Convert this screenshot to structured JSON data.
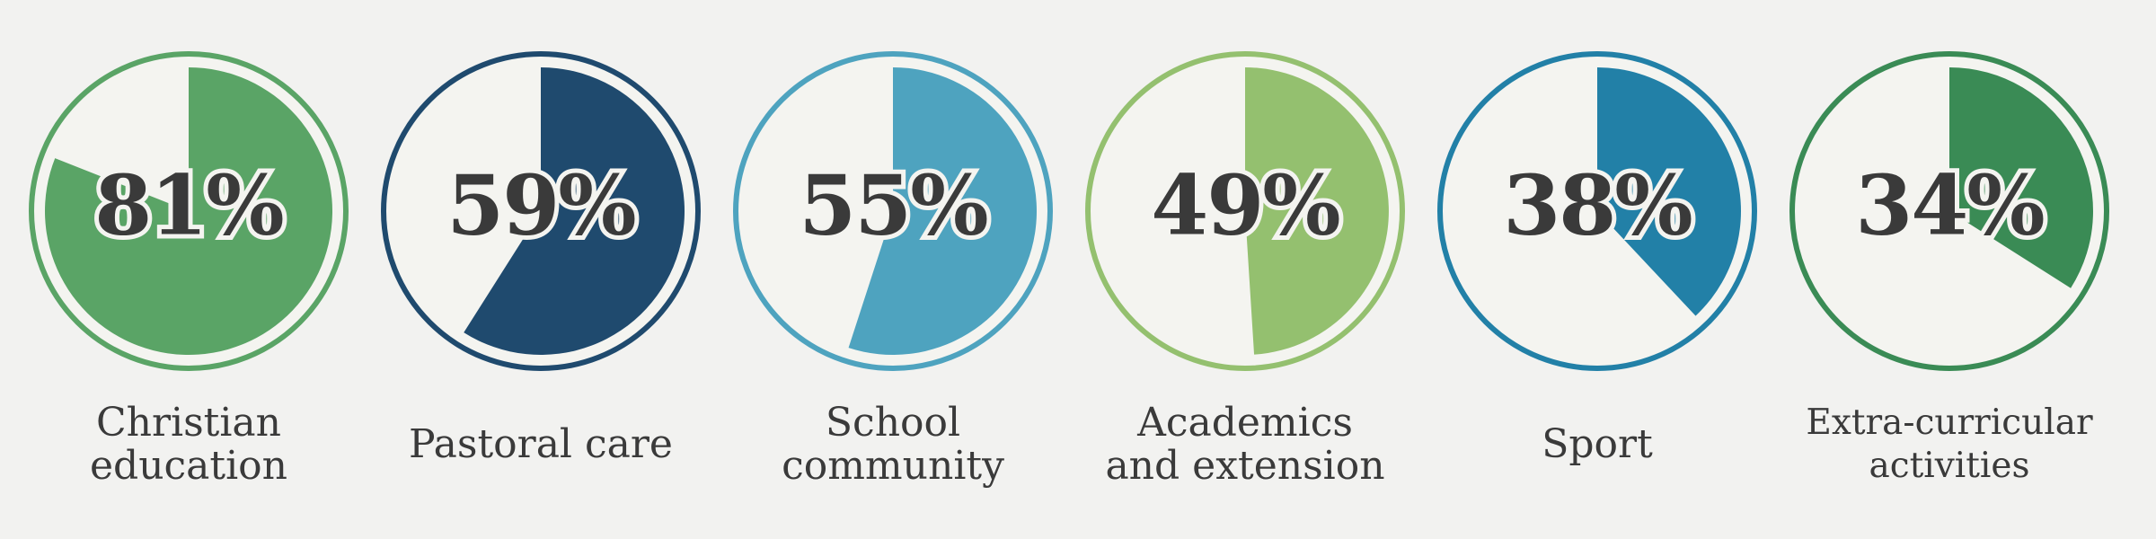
{
  "chart_data": {
    "type": "pie",
    "items": [
      {
        "label": "Christian\neducation",
        "value": 81,
        "display": "81%",
        "color": "#5aa466"
      },
      {
        "label": "Pastoral care",
        "value": 59,
        "display": "59%",
        "color": "#1f4a6e"
      },
      {
        "label": "School\ncommunity",
        "value": 55,
        "display": "55%",
        "color": "#4ea3bf"
      },
      {
        "label": "Academics\nand extension",
        "value": 49,
        "display": "49%",
        "color": "#94c06f"
      },
      {
        "label": "Sport",
        "value": 38,
        "display": "38%",
        "color": "#2280a7"
      },
      {
        "label": "Extra-curricular\nactivities",
        "value": 34,
        "display": "34%",
        "color": "#3a8b55"
      }
    ]
  }
}
